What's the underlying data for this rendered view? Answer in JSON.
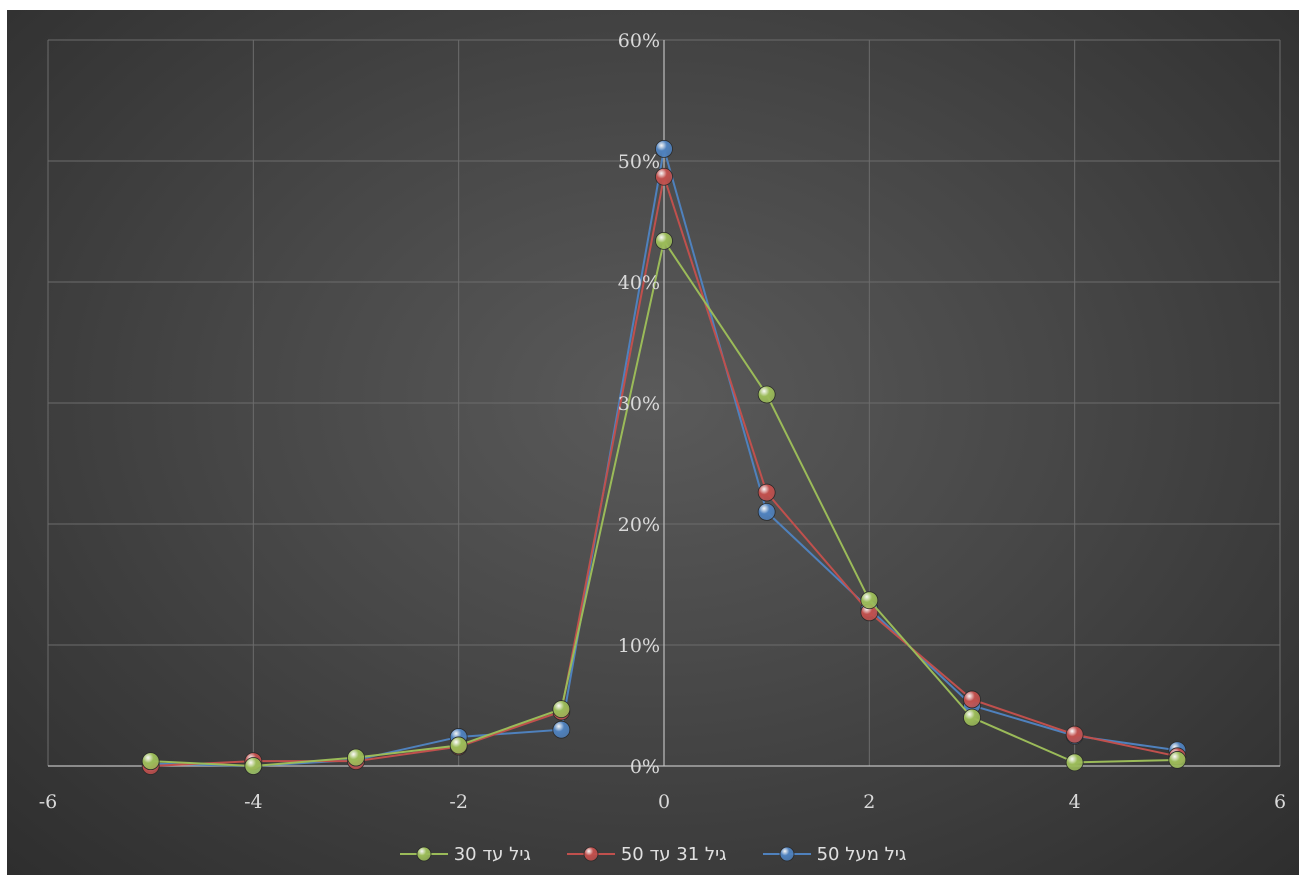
{
  "chart_data": {
    "type": "line",
    "title": "",
    "xlabel": "",
    "ylabel": "",
    "xlim": [
      -6,
      6
    ],
    "ylim": [
      0,
      0.6
    ],
    "x_ticks": [
      "-6",
      "-4",
      "-2",
      "0",
      "2",
      "4",
      "6"
    ],
    "y_ticks": [
      "0%",
      "10%",
      "20%",
      "30%",
      "40%",
      "50%",
      "60%"
    ],
    "x_tick_values": [
      -6,
      -4,
      -2,
      0,
      2,
      4,
      6
    ],
    "y_tick_values": [
      0,
      0.1,
      0.2,
      0.3,
      0.4,
      0.5,
      0.6
    ],
    "grid": true,
    "legend_position": "bottom",
    "series": [
      {
        "name": "גיל מעל 50",
        "color": "#4f81bd",
        "x": [
          -5,
          -4,
          -3,
          -2,
          -1,
          0,
          1,
          2,
          3,
          4,
          5
        ],
        "y": [
          0.002,
          0.0,
          0.005,
          0.024,
          0.03,
          0.51,
          0.21,
          0.13,
          0.05,
          0.025,
          0.013
        ]
      },
      {
        "name": "גיל 31 עד 50",
        "color": "#c0504d",
        "x": [
          -5,
          -4,
          -3,
          -2,
          -1,
          0,
          1,
          2,
          3,
          4,
          5
        ],
        "y": [
          0.0,
          0.004,
          0.004,
          0.016,
          0.045,
          0.487,
          0.226,
          0.127,
          0.055,
          0.026,
          0.008
        ]
      },
      {
        "name": "גיל עד 30",
        "color": "#9bbb59",
        "x": [
          -5,
          -4,
          -3,
          -2,
          -1,
          0,
          1,
          2,
          3,
          4,
          5
        ],
        "y": [
          0.004,
          0.0,
          0.007,
          0.017,
          0.047,
          0.434,
          0.307,
          0.137,
          0.04,
          0.003,
          0.005
        ]
      }
    ]
  }
}
